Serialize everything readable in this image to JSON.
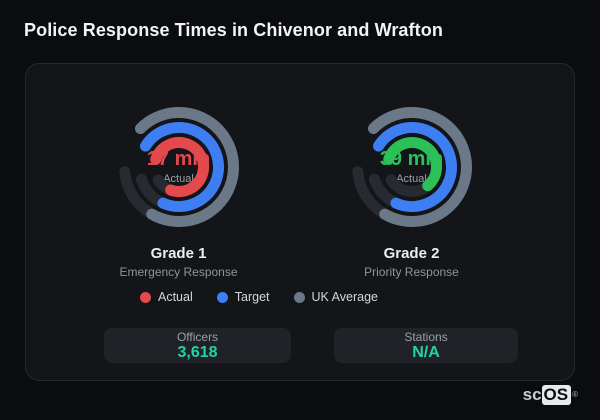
{
  "page": {
    "title": "Police Response Times in Chivenor and Wrafton"
  },
  "colors": {
    "background": "#0b0c10",
    "card_background": "#141519",
    "track": "#272a30",
    "stat_value": "#22d3a6",
    "actual_red": "#e5484d",
    "actual_green": "#2bc158",
    "target_blue": "#3d7ff2",
    "uk_average_gray": "#6b7888"
  },
  "chart_data": {
    "type": "radial-gauge",
    "legend_position": "bottom-center",
    "legend": [
      {
        "label": "Actual",
        "color": "#e5484d"
      },
      {
        "label": "Target",
        "color": "#3d7ff2"
      },
      {
        "label": "UK Average",
        "color": "#6b7888"
      }
    ],
    "gauges": [
      {
        "title": "Grade 1",
        "subtitle": "Emergency Response",
        "value_text": "17 min",
        "value_label": "Actual",
        "value_color": "#e5484d",
        "rings": [
          {
            "name": "uk-average",
            "color": "#6b7888",
            "r": 54.5,
            "start": 315,
            "extent": 310,
            "fill": 255
          },
          {
            "name": "target",
            "color": "#3d7ff2",
            "r": 39.5,
            "start": 302,
            "extent": 310,
            "fill": 262
          },
          {
            "name": "actual",
            "color": "#e5484d",
            "r": 24.5,
            "start": 288,
            "extent": 310,
            "fill": 272
          }
        ]
      },
      {
        "title": "Grade 2",
        "subtitle": "Priority Response",
        "value_text": "39 min",
        "value_label": "Actual",
        "value_color": "#2bc158",
        "rings": [
          {
            "name": "uk-average",
            "color": "#6b7888",
            "r": 54.5,
            "start": 315,
            "extent": 310,
            "fill": 255
          },
          {
            "name": "target",
            "color": "#3d7ff2",
            "r": 39.5,
            "start": 302,
            "extent": 310,
            "fill": 262
          },
          {
            "name": "actual",
            "color": "#2bc158",
            "r": 24.5,
            "start": 288,
            "extent": 310,
            "fill": 212
          }
        ]
      }
    ],
    "stats": [
      {
        "label": "Officers",
        "value": "3,618"
      },
      {
        "label": "Stations",
        "value": "N/A"
      }
    ]
  },
  "branding": {
    "prefix": "sc",
    "suffix": "OS",
    "trademark": "®"
  }
}
